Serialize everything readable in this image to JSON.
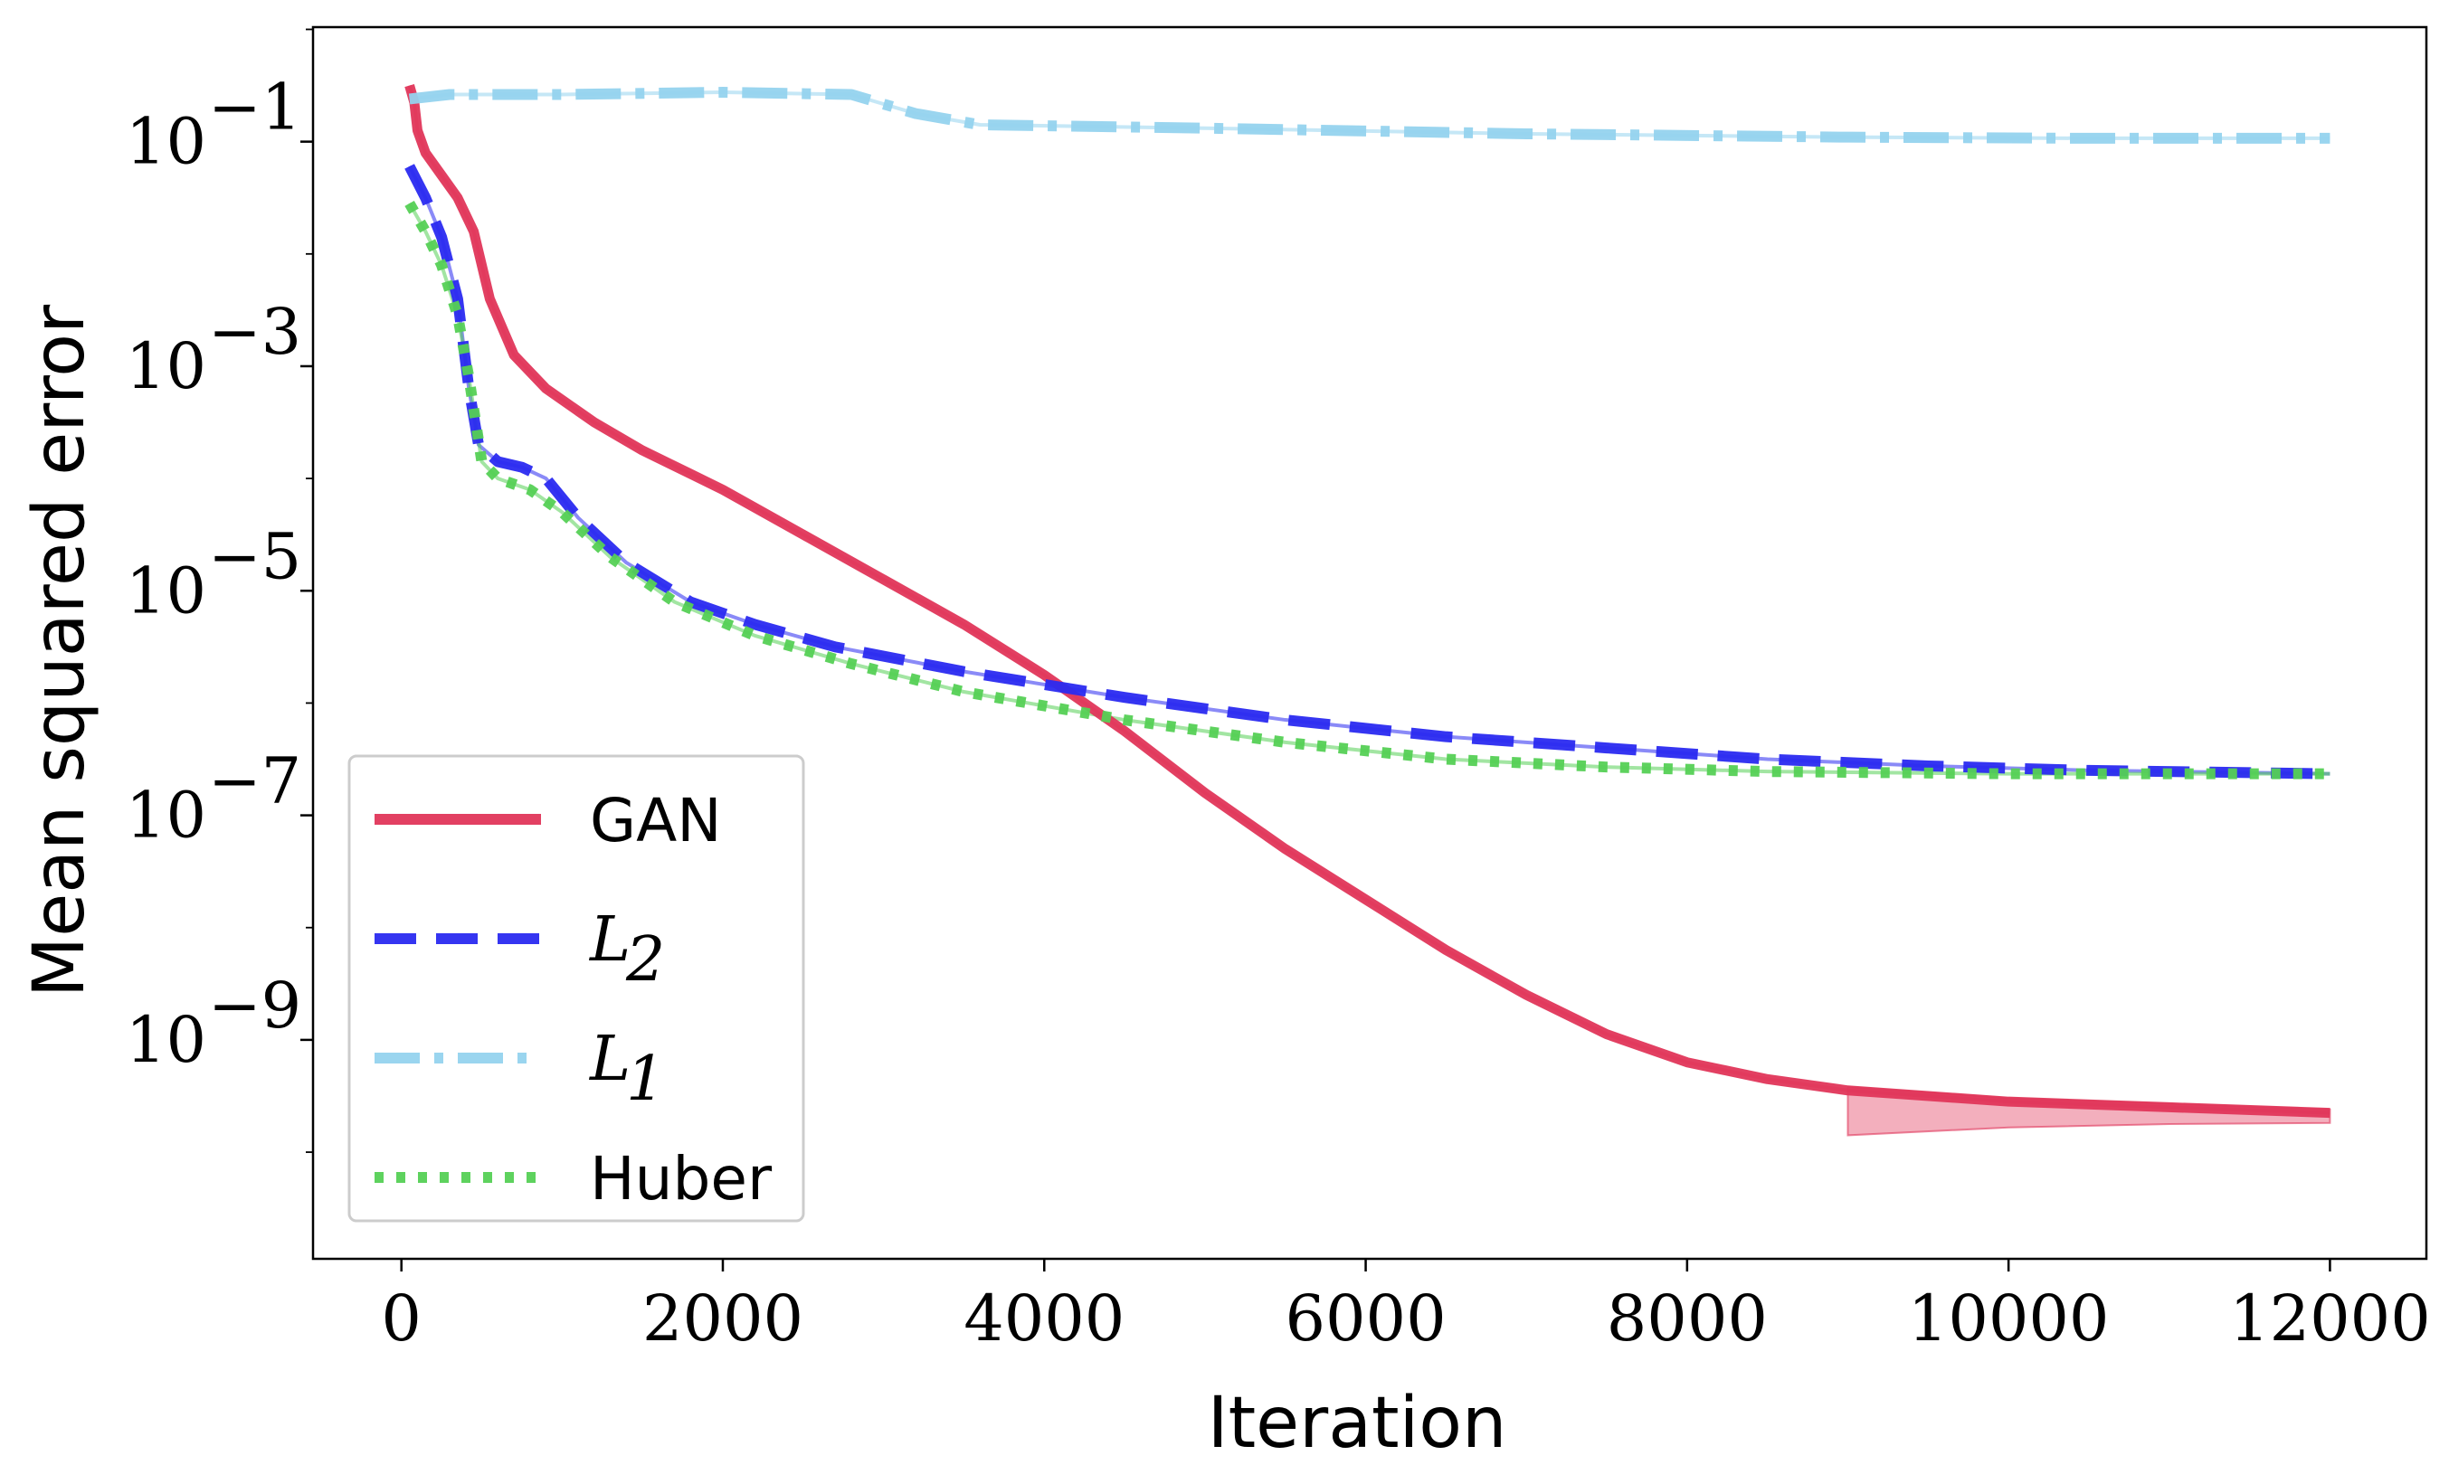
{
  "chart_data": {
    "type": "line",
    "title": "",
    "xlabel": "Iteration",
    "ylabel": "Mean squared error",
    "xlim": [
      -550,
      12600
    ],
    "ylim_log10": [
      -10.95,
      0.02
    ],
    "y_scale": "log",
    "x_ticks": [
      0,
      2000,
      4000,
      6000,
      8000,
      10000,
      12000
    ],
    "x_tick_labels": [
      "0",
      "2000",
      "4000",
      "6000",
      "8000",
      "10000",
      "12000"
    ],
    "y_ticks_log10": [
      -1,
      -3,
      -5,
      -7,
      -9
    ],
    "y_tick_labels": [
      {
        "base": "10",
        "exp": "−1"
      },
      {
        "base": "10",
        "exp": "−3"
      },
      {
        "base": "10",
        "exp": "−5"
      },
      {
        "base": "10",
        "exp": "−7"
      },
      {
        "base": "10",
        "exp": "−9"
      }
    ],
    "grid": false,
    "legend_position": "lower-left",
    "series": [
      {
        "name": "GAN",
        "label_main": "GAN",
        "label_sub": "",
        "color": "#e0365a",
        "style": "solid",
        "band_lower_log10": [
          -9.85,
          -9.78,
          -9.75,
          -9.74
        ],
        "band_points_x": [
          9000,
          10000,
          11000,
          12000
        ],
        "points": [
          [
            50,
            -0.5
          ],
          [
            80,
            -0.65
          ],
          [
            100,
            -0.9
          ],
          [
            150,
            -1.1
          ],
          [
            250,
            -1.3
          ],
          [
            350,
            -1.5
          ],
          [
            450,
            -1.8
          ],
          [
            550,
            -2.4
          ],
          [
            700,
            -2.9
          ],
          [
            900,
            -3.2
          ],
          [
            1200,
            -3.5
          ],
          [
            1500,
            -3.75
          ],
          [
            2000,
            -4.1
          ],
          [
            2500,
            -4.5
          ],
          [
            3000,
            -4.9
          ],
          [
            3500,
            -5.3
          ],
          [
            4000,
            -5.75
          ],
          [
            4500,
            -6.25
          ],
          [
            5000,
            -6.8
          ],
          [
            5500,
            -7.3
          ],
          [
            6000,
            -7.75
          ],
          [
            6500,
            -8.2
          ],
          [
            7000,
            -8.6
          ],
          [
            7500,
            -8.95
          ],
          [
            8000,
            -9.2
          ],
          [
            8500,
            -9.35
          ],
          [
            9000,
            -9.45
          ],
          [
            10000,
            -9.55
          ],
          [
            11000,
            -9.6
          ],
          [
            12000,
            -9.65
          ]
        ]
      },
      {
        "name": "L2",
        "label_main": "L",
        "label_sub": "2",
        "color": "#2a2af0",
        "style": "dashed",
        "points": [
          [
            50,
            -1.22
          ],
          [
            150,
            -1.5
          ],
          [
            250,
            -1.85
          ],
          [
            350,
            -2.4
          ],
          [
            420,
            -3.2
          ],
          [
            480,
            -3.7
          ],
          [
            600,
            -3.85
          ],
          [
            750,
            -3.9
          ],
          [
            900,
            -4.0
          ],
          [
            1100,
            -4.35
          ],
          [
            1400,
            -4.75
          ],
          [
            1800,
            -5.1
          ],
          [
            2200,
            -5.3
          ],
          [
            2700,
            -5.5
          ],
          [
            3500,
            -5.72
          ],
          [
            4500,
            -5.95
          ],
          [
            5500,
            -6.15
          ],
          [
            6500,
            -6.3
          ],
          [
            7500,
            -6.4
          ],
          [
            8500,
            -6.5
          ],
          [
            9500,
            -6.56
          ],
          [
            10500,
            -6.6
          ],
          [
            12000,
            -6.63
          ]
        ]
      },
      {
        "name": "L1",
        "label_main": "L",
        "label_sub": "1",
        "color": "#95d3ee",
        "style": "dashdot",
        "points": [
          [
            50,
            -0.62
          ],
          [
            300,
            -0.58
          ],
          [
            1000,
            -0.58
          ],
          [
            2000,
            -0.56
          ],
          [
            2800,
            -0.58
          ],
          [
            3200,
            -0.75
          ],
          [
            3600,
            -0.85
          ],
          [
            5000,
            -0.88
          ],
          [
            7000,
            -0.93
          ],
          [
            9000,
            -0.96
          ],
          [
            10500,
            -0.97
          ],
          [
            12000,
            -0.97
          ]
        ]
      },
      {
        "name": "Huber",
        "label_main": "Huber",
        "label_sub": "",
        "color": "#55d055",
        "style": "dotted",
        "points": [
          [
            50,
            -1.55
          ],
          [
            150,
            -1.8
          ],
          [
            250,
            -2.1
          ],
          [
            350,
            -2.55
          ],
          [
            420,
            -3.1
          ],
          [
            500,
            -3.85
          ],
          [
            600,
            -4.0
          ],
          [
            800,
            -4.1
          ],
          [
            1000,
            -4.3
          ],
          [
            1300,
            -4.7
          ],
          [
            1700,
            -5.1
          ],
          [
            2200,
            -5.4
          ],
          [
            2800,
            -5.65
          ],
          [
            3500,
            -5.9
          ],
          [
            4500,
            -6.15
          ],
          [
            5500,
            -6.35
          ],
          [
            6500,
            -6.5
          ],
          [
            7500,
            -6.57
          ],
          [
            8500,
            -6.61
          ],
          [
            10000,
            -6.63
          ],
          [
            12000,
            -6.63
          ]
        ]
      }
    ]
  }
}
